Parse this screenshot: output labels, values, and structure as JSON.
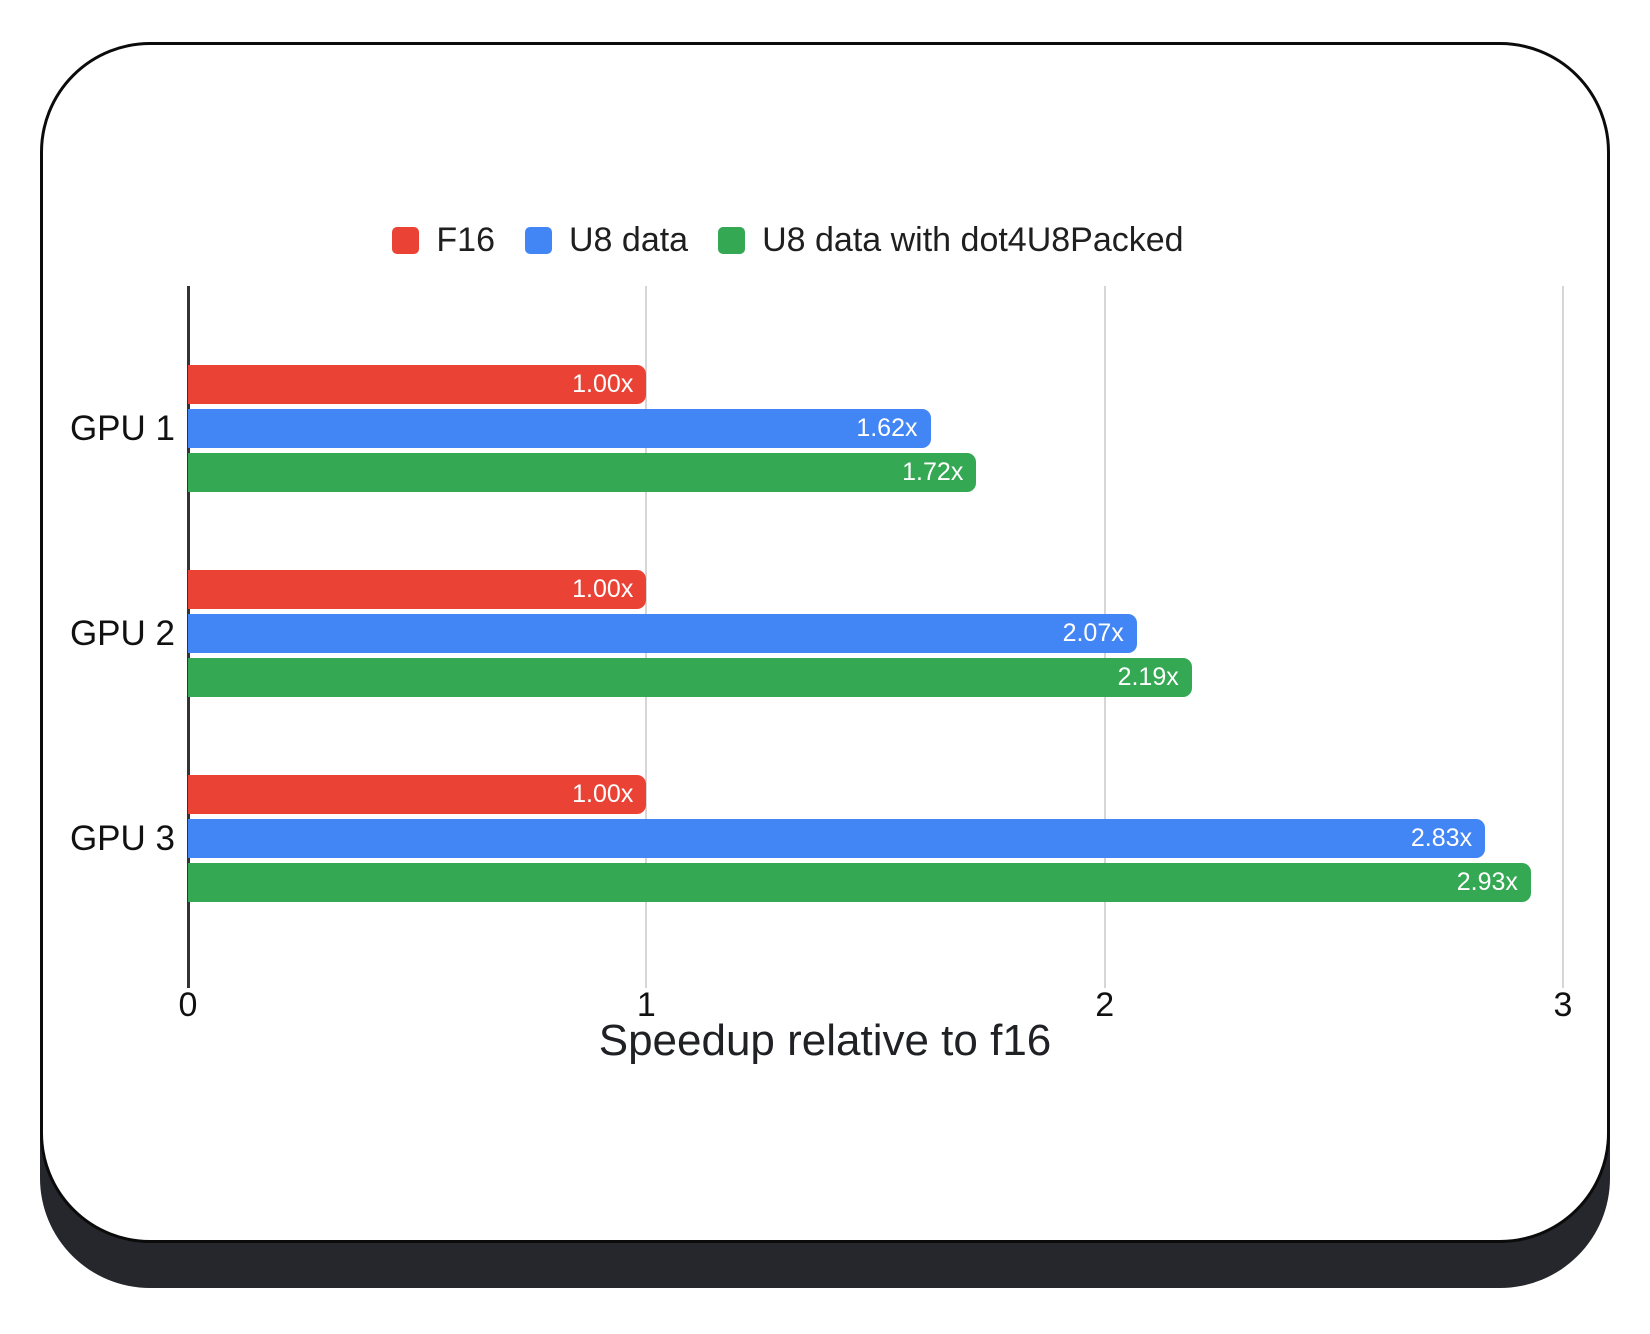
{
  "chart_data": {
    "type": "bar",
    "orientation": "horizontal",
    "title": "Speedup relative to f16",
    "categories": [
      "GPU 1",
      "GPU 2",
      "GPU 3"
    ],
    "series": [
      {
        "name": "F16",
        "color": "#EA4335",
        "values": [
          1.0,
          1.0,
          1.0
        ],
        "labels": [
          "1.00x",
          "1.00x",
          "1.00x"
        ]
      },
      {
        "name": "U8 data",
        "color": "#4285F4",
        "values": [
          1.62,
          2.07,
          2.83
        ],
        "labels": [
          "1.62x",
          "2.07x",
          "2.83x"
        ]
      },
      {
        "name": "U8 data with dot4U8Packed",
        "color": "#34A853",
        "values": [
          1.72,
          2.19,
          2.93
        ],
        "labels": [
          "1.72x",
          "2.19x",
          "2.93x"
        ]
      }
    ],
    "xticks": [
      0,
      1,
      2,
      3
    ],
    "xtick_labels": [
      "0",
      "1",
      "2",
      "3"
    ],
    "xlim": [
      0,
      3
    ],
    "legend_position": "top",
    "grid": true,
    "value_labels_inside_bars": true
  },
  "colors": {
    "bar_red": "#EA4335",
    "bar_blue": "#4285F4",
    "bar_green": "#34A853",
    "gridline": "#d6d6d6",
    "axis_baseline": "#333333",
    "text": "#1f1f1f",
    "bar_value_text": "#ffffff",
    "card_background": "#ffffff",
    "card_border": "#0b0b0b",
    "card_shadow": "#25272c",
    "page_background": "#ffffff"
  }
}
